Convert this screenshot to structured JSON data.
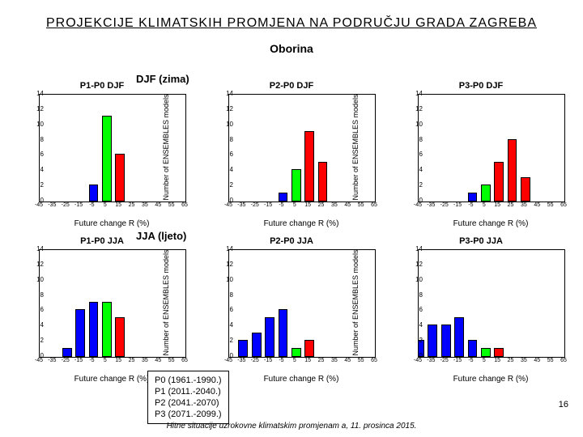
{
  "title": "PROJEKCIJE KLIMATSKIH PROMJENA NA PODRUČJU GRADA ZAGREBA",
  "subtitle": "Oborina",
  "rowLabels": {
    "djf": "DJF (zima)",
    "jja": "JJA (ljeto)"
  },
  "ylabel": "Number of ENSEMBLES models",
  "xlabel": "Future change R (%)",
  "legend": [
    "P0 (1961.-1990.)",
    "P1 (2011.-2040.)",
    "P2 (2041.-2070)",
    "P3 (2071.-2099.)"
  ],
  "pageNumber": "16",
  "footer": "Hitne situacije uzrokovne klimatskim promjenam a, 11. prosinca 2015.",
  "colors": {
    "blue": "#0000ff",
    "green": "#00ff00",
    "red": "#ff0000",
    "axis": "#000000",
    "bg": "#ffffff"
  },
  "axes": {
    "ymax": 14,
    "yticks": [
      0,
      2,
      4,
      6,
      8,
      10,
      12,
      14
    ],
    "xmin": -45,
    "xmax": 65,
    "xticks": [
      -45,
      -35,
      -25,
      -15,
      -5,
      5,
      15,
      25,
      35,
      45,
      55,
      65
    ]
  },
  "barWidth": 0.6,
  "panels": [
    {
      "id": "p1p0-djf",
      "title": "P1-P0 DJF",
      "bars": [
        {
          "x": -5,
          "y": 2,
          "color": "blue"
        },
        {
          "x": 5,
          "y": 11,
          "color": "green"
        },
        {
          "x": 15,
          "y": 6,
          "color": "red"
        }
      ]
    },
    {
      "id": "p2p0-djf",
      "title": "P2-P0 DJF",
      "bars": [
        {
          "x": -5,
          "y": 1,
          "color": "blue"
        },
        {
          "x": 5,
          "y": 4,
          "color": "green"
        },
        {
          "x": 15,
          "y": 9,
          "color": "red"
        },
        {
          "x": 25,
          "y": 5,
          "color": "red"
        }
      ]
    },
    {
      "id": "p3p0-djf",
      "title": "P3-P0 DJF",
      "bars": [
        {
          "x": -5,
          "y": 1,
          "color": "blue"
        },
        {
          "x": 5,
          "y": 2,
          "color": "green"
        },
        {
          "x": 15,
          "y": 5,
          "color": "red"
        },
        {
          "x": 25,
          "y": 8,
          "color": "red"
        },
        {
          "x": 35,
          "y": 3,
          "color": "red"
        }
      ]
    },
    {
      "id": "p1p0-jja",
      "title": "P1-P0 JJA",
      "bars": [
        {
          "x": -25,
          "y": 1,
          "color": "blue"
        },
        {
          "x": -15,
          "y": 6,
          "color": "blue"
        },
        {
          "x": -5,
          "y": 7,
          "color": "blue"
        },
        {
          "x": 5,
          "y": 7,
          "color": "green"
        },
        {
          "x": 15,
          "y": 5,
          "color": "red"
        }
      ]
    },
    {
      "id": "p2p0-jja",
      "title": "P2-P0 JJA",
      "bars": [
        {
          "x": -35,
          "y": 2,
          "color": "blue"
        },
        {
          "x": -25,
          "y": 3,
          "color": "blue"
        },
        {
          "x": -15,
          "y": 5,
          "color": "blue"
        },
        {
          "x": -5,
          "y": 6,
          "color": "blue"
        },
        {
          "x": 5,
          "y": 1,
          "color": "green"
        },
        {
          "x": 15,
          "y": 2,
          "color": "red"
        }
      ]
    },
    {
      "id": "p3p0-jja",
      "title": "P3-P0 JJA",
      "bars": [
        {
          "x": -45,
          "y": 2,
          "color": "blue"
        },
        {
          "x": -35,
          "y": 4,
          "color": "blue"
        },
        {
          "x": -25,
          "y": 4,
          "color": "blue"
        },
        {
          "x": -15,
          "y": 5,
          "color": "blue"
        },
        {
          "x": -5,
          "y": 2,
          "color": "blue"
        },
        {
          "x": 5,
          "y": 1,
          "color": "green"
        },
        {
          "x": 15,
          "y": 1,
          "color": "red"
        }
      ]
    }
  ]
}
